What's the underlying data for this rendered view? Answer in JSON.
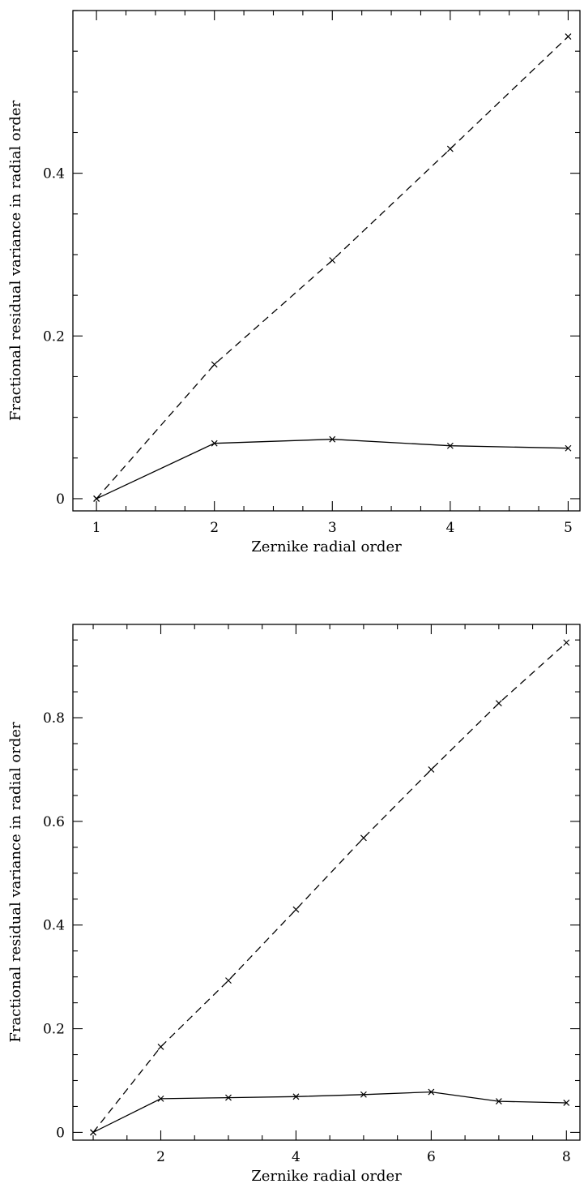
{
  "chart_data": [
    {
      "type": "line",
      "xlabel": "Zernike radial order",
      "ylabel": "Fractional residual variance in radial order",
      "xlim": [
        0.8,
        5.1
      ],
      "ylim": [
        -0.015,
        0.6
      ],
      "x_ticks": [
        1,
        2,
        3,
        4,
        5
      ],
      "x_tick_labels": [
        "1",
        "2",
        "3",
        "4",
        "5"
      ],
      "y_ticks": [
        0,
        0.2,
        0.4
      ],
      "y_tick_labels": [
        "0",
        "0.2",
        "0.4"
      ],
      "grid": false,
      "series": [
        {
          "style": "dashed",
          "marker": "x",
          "x": [
            1,
            2,
            3,
            4,
            5
          ],
          "values": [
            0.0,
            0.165,
            0.293,
            0.43,
            0.568
          ]
        },
        {
          "style": "solid",
          "marker": "x",
          "x": [
            1,
            2,
            3,
            4,
            5
          ],
          "values": [
            0.0,
            0.068,
            0.073,
            0.065,
            0.062
          ]
        }
      ]
    },
    {
      "type": "line",
      "xlabel": "Zernike radial order",
      "ylabel": "Fractional residual variance in radial order",
      "xlim": [
        0.7,
        8.2
      ],
      "ylim": [
        -0.015,
        0.98
      ],
      "x_ticks": [
        2,
        4,
        6,
        8
      ],
      "x_tick_labels": [
        "2",
        "4",
        "6",
        "8"
      ],
      "y_ticks": [
        0,
        0.2,
        0.4,
        0.6,
        0.8
      ],
      "y_tick_labels": [
        "0",
        "0.2",
        "0.4",
        "0.6",
        "0.8"
      ],
      "grid": false,
      "series": [
        {
          "style": "dashed",
          "marker": "x",
          "x": [
            1,
            2,
            3,
            4,
            5,
            6,
            7,
            8
          ],
          "values": [
            0.0,
            0.165,
            0.293,
            0.43,
            0.568,
            0.7,
            0.828,
            0.945
          ]
        },
        {
          "style": "solid",
          "marker": "x",
          "x": [
            1,
            2,
            3,
            4,
            5,
            6,
            7,
            8
          ],
          "values": [
            0.0,
            0.065,
            0.067,
            0.069,
            0.073,
            0.078,
            0.06,
            0.057
          ]
        }
      ]
    }
  ]
}
